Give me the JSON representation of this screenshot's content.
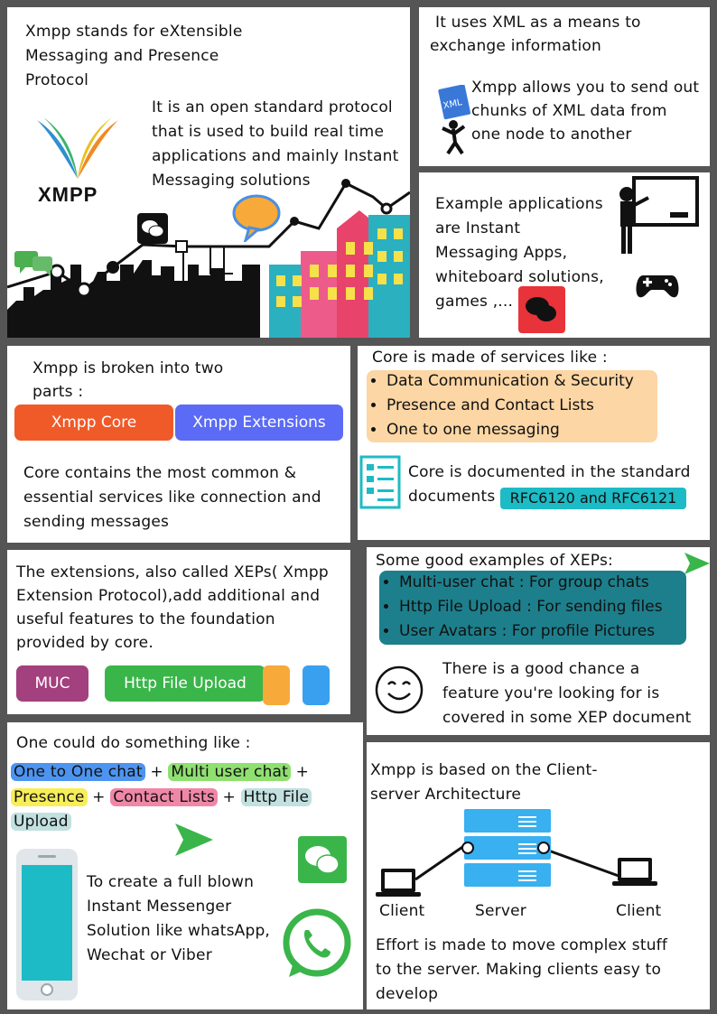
{
  "colors": {
    "core": "#f05a28",
    "extensions": "#5b6bf5",
    "muc": "#a3407e",
    "http": "#3ab54a",
    "orange": "#f7a93a",
    "blue": "#39a0f0",
    "peach": "#fcd6a4",
    "teal_box": "#1d7f8c",
    "cyan": "#1dbbc5",
    "one_to_one": "#4d94f0",
    "multi_user": "#8fe070",
    "presence": "#f7ee58",
    "contact_lists": "#f087a8",
    "http_upload": "#c2e0e0"
  },
  "panel1": {
    "intro": [
      "Xmpp stands for eXtensible",
      "Messaging and Presence",
      "Protocol"
    ],
    "logo": "XMPP",
    "desc": [
      "It is an open standard protocol",
      "that is used to build real time",
      "applications and mainly Instant",
      "Messaging solutions"
    ]
  },
  "panel2": {
    "line1": [
      "It uses XML as a means to",
      "exchange information"
    ],
    "xml_tag": "XML",
    "line2": [
      "Xmpp allows you to send out",
      "chunks of XML data from",
      "one node to another"
    ]
  },
  "panel3": {
    "text": [
      "Example applications",
      "are Instant",
      "Messaging Apps,",
      "whiteboard solutions,",
      "games ,..."
    ]
  },
  "panel4": {
    "heading": [
      "Xmpp is broken into two",
      "parts :"
    ],
    "core_label": "Xmpp Core",
    "ext_label": "Xmpp Extensions",
    "body": [
      "Core contains the most common &",
      "essential services like connection and",
      "sending messages"
    ]
  },
  "panel5": {
    "heading": "Core is made of services like :",
    "items": [
      "Data Communication & Security",
      "Presence and Contact Lists",
      "One to one messaging"
    ],
    "doc_text_1": "Core is documented in the standard",
    "doc_text_2": "documents",
    "rfc": "RFC6120 and RFC6121"
  },
  "panel6": {
    "text": [
      "The extensions, also called XEPs( Xmpp",
      "Extension Protocol),add additional and",
      "useful features to the foundation",
      "provided by core."
    ],
    "muc": "MUC",
    "http": "Http File Upload"
  },
  "panel7": {
    "heading": "Some good examples of XEPs:",
    "items": [
      "Multi-user chat : For group chats",
      "Http File Upload : For sending files",
      "User Avatars : For profile Pictures"
    ],
    "text": [
      "There is a good chance a",
      "feature you're looking for is",
      "covered in some XEP document"
    ]
  },
  "panel8": {
    "heading": "One could do something like :",
    "one_to_one": "One to One chat",
    "multi_user": "Multi user chat",
    "presence": "Presence",
    "contact_lists": "Contact Lists",
    "http_file": "Http File",
    "upload": "Upload",
    "plus": "+",
    "text": [
      "To create a full blown",
      "Instant Messenger",
      "Solution like whatsApp,",
      "Wechat or Viber"
    ]
  },
  "panel9": {
    "heading": [
      "Xmpp is based on the Client-",
      "server Architecture"
    ],
    "client_left": "Client",
    "server": "Server",
    "client_right": "Client",
    "text": [
      "Effort is made to move complex stuff",
      "to the server. Making clients easy to",
      "develop"
    ]
  }
}
